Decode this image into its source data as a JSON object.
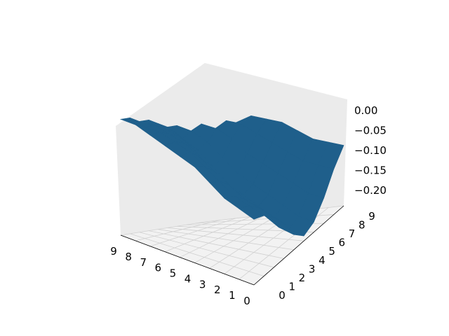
{
  "chart_data": {
    "type": "surface3d",
    "title": "",
    "xlabel": "",
    "ylabel": "",
    "zlabel": "",
    "x_ticks": [
      "0",
      "1",
      "2",
      "3",
      "4",
      "5",
      "6",
      "7",
      "8",
      "9"
    ],
    "y_ticks": [
      "0",
      "1",
      "2",
      "3",
      "4",
      "5",
      "6",
      "7",
      "8",
      "9"
    ],
    "z_ticks": [
      "0.00",
      "−0.05",
      "−0.10",
      "−0.15",
      "−0.20"
    ],
    "z_tick_values": [
      0.0,
      -0.05,
      -0.1,
      -0.15,
      -0.2
    ],
    "xlim": [
      0,
      9
    ],
    "ylim": [
      0,
      9
    ],
    "zlim": [
      -0.23,
      0.02
    ],
    "grid": true,
    "surface_color": "#1f5f8b",
    "x": [
      0,
      1,
      2,
      3,
      4,
      5,
      6,
      7,
      8,
      9
    ],
    "y": [
      0,
      1,
      2,
      3,
      4,
      5,
      6,
      7,
      8,
      9
    ],
    "z": [
      [
        -0.1,
        -0.11,
        -0.13,
        -0.16,
        -0.2,
        -0.22,
        -0.21,
        -0.18,
        -0.14,
        -0.11
      ],
      [
        -0.09,
        -0.1,
        -0.12,
        -0.15,
        -0.19,
        -0.21,
        -0.2,
        -0.17,
        -0.13,
        -0.1
      ],
      [
        -0.08,
        -0.09,
        -0.11,
        -0.14,
        -0.17,
        -0.19,
        -0.18,
        -0.15,
        -0.12,
        -0.09
      ],
      [
        -0.06,
        -0.07,
        -0.09,
        -0.12,
        -0.15,
        -0.17,
        -0.16,
        -0.13,
        -0.1,
        -0.07
      ],
      [
        -0.04,
        -0.05,
        -0.07,
        -0.1,
        -0.13,
        -0.15,
        -0.14,
        -0.11,
        -0.08,
        -0.05
      ],
      [
        -0.03,
        -0.03,
        -0.05,
        -0.08,
        -0.11,
        -0.13,
        -0.12,
        -0.09,
        -0.06,
        -0.04
      ],
      [
        -0.02,
        -0.02,
        -0.03,
        -0.05,
        -0.08,
        -0.1,
        -0.09,
        -0.06,
        -0.04,
        -0.03
      ],
      [
        -0.01,
        -0.01,
        -0.02,
        -0.03,
        -0.05,
        -0.07,
        -0.06,
        -0.04,
        -0.03,
        -0.04
      ],
      [
        0.0,
        -0.01,
        -0.01,
        -0.02,
        -0.03,
        -0.05,
        -0.04,
        -0.03,
        -0.05,
        -0.09
      ],
      [
        0.0,
        0.0,
        -0.01,
        -0.01,
        -0.02,
        -0.03,
        -0.03,
        -0.05,
        -0.08,
        -0.12
      ]
    ]
  }
}
